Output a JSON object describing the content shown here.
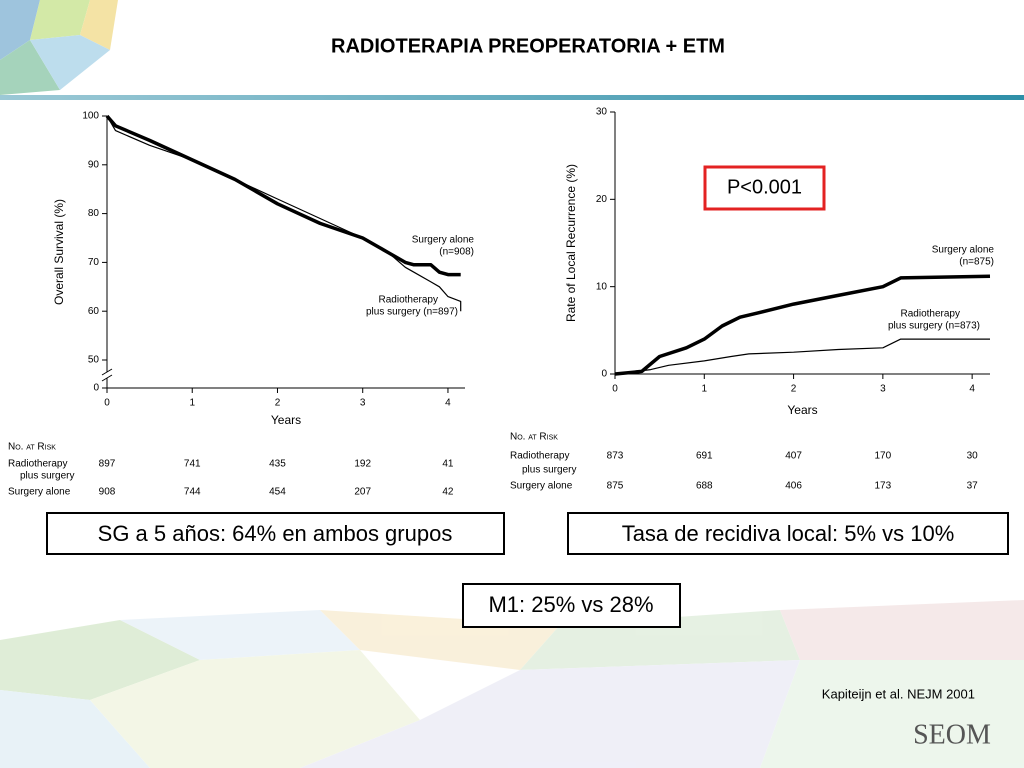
{
  "title": "RADIOTERAPIA PREOPERATORIA + ETM",
  "boxes": [
    "SG a 5 años: 64% en ambos grupos",
    "Tasa de recidiva local: 5% vs 10%",
    "M1: 25% vs 28%"
  ],
  "citation": "Kapiteijn et al. NEJM 2001",
  "logo": "SEOM",
  "chart_data": [
    {
      "type": "line",
      "ylabel": "Overall Survival (%)",
      "xlabel": "Years",
      "xlim": [
        0,
        4.2
      ],
      "xticks": [
        0,
        1,
        2,
        3,
        4
      ],
      "ylim": [
        50,
        100
      ],
      "yticks": [
        0,
        50,
        60,
        70,
        80,
        90,
        100
      ],
      "axis_break": true,
      "series": [
        {
          "name": "Surgery alone",
          "color": "#000000",
          "x": [
            0,
            0.1,
            0.5,
            1,
            1.5,
            2,
            2.5,
            3,
            3.3,
            3.5,
            3.6,
            3.8,
            3.9,
            4,
            4.15
          ],
          "values": [
            100,
            98,
            95,
            91,
            87,
            82,
            78,
            75,
            72,
            70,
            69.5,
            69.5,
            68,
            67.5,
            67.5
          ]
        },
        {
          "name": "Radiotherapy plus surgery",
          "color": "#000000",
          "x": [
            0,
            0.1,
            0.5,
            1,
            1.5,
            2,
            2.5,
            3,
            3.3,
            3.5,
            3.6,
            3.8,
            3.9,
            4,
            4.15,
            4.15
          ],
          "values": [
            100,
            97,
            94,
            91,
            87,
            83,
            79,
            75,
            72,
            69,
            68,
            66,
            65,
            63,
            62,
            60
          ]
        }
      ],
      "annotations": [
        {
          "lines": [
            "Surgery alone",
            "(n=908)"
          ]
        },
        {
          "lines": [
            "Radiotherapy",
            "plus surgery (n=897)"
          ]
        }
      ],
      "risk_table": {
        "title": "No. at Risk",
        "rows": [
          {
            "label": [
              "Radiotherapy",
              "plus surgery"
            ],
            "values": [
              897,
              741,
              435,
              192,
              41
            ]
          },
          {
            "label": [
              "Surgery alone"
            ],
            "values": [
              908,
              744,
              454,
              207,
              42
            ]
          }
        ]
      }
    },
    {
      "type": "line",
      "ylabel": "Rate of Local Recurrence (%)",
      "xlabel": "Years",
      "xlim": [
        0,
        4.2
      ],
      "xticks": [
        0,
        1,
        2,
        3,
        4
      ],
      "ylim": [
        0,
        30
      ],
      "yticks": [
        0,
        10,
        20,
        30
      ],
      "p_value": "P<0.001",
      "series": [
        {
          "name": "Surgery alone",
          "color": "#000000",
          "x": [
            0,
            0.3,
            0.5,
            0.8,
            1,
            1.2,
            1.4,
            1.6,
            2,
            2.5,
            3,
            3.2,
            4.2
          ],
          "values": [
            0,
            0.3,
            2,
            3,
            4,
            5.5,
            6.5,
            7,
            8,
            9,
            10,
            11,
            11.2
          ]
        },
        {
          "name": "Radiotherapy plus surgery",
          "color": "#000000",
          "x": [
            0,
            0.4,
            0.6,
            1,
            1.3,
            1.5,
            2,
            2.5,
            3,
            3.2,
            4.2
          ],
          "values": [
            0,
            0.5,
            1,
            1.5,
            2,
            2.3,
            2.5,
            2.8,
            3,
            4,
            4
          ]
        }
      ],
      "annotations": [
        {
          "lines": [
            "Surgery alone",
            "(n=875)"
          ]
        },
        {
          "lines": [
            "Radiotherapy",
            "plus surgery (n=873)"
          ]
        }
      ],
      "risk_table": {
        "title": "No. at Risk",
        "rows": [
          {
            "label": [
              "Radiotherapy",
              "plus surgery"
            ],
            "values": [
              873,
              691,
              407,
              170,
              30
            ]
          },
          {
            "label": [
              "Surgery alone"
            ],
            "values": [
              875,
              688,
              406,
              173,
              37
            ]
          }
        ]
      }
    }
  ]
}
